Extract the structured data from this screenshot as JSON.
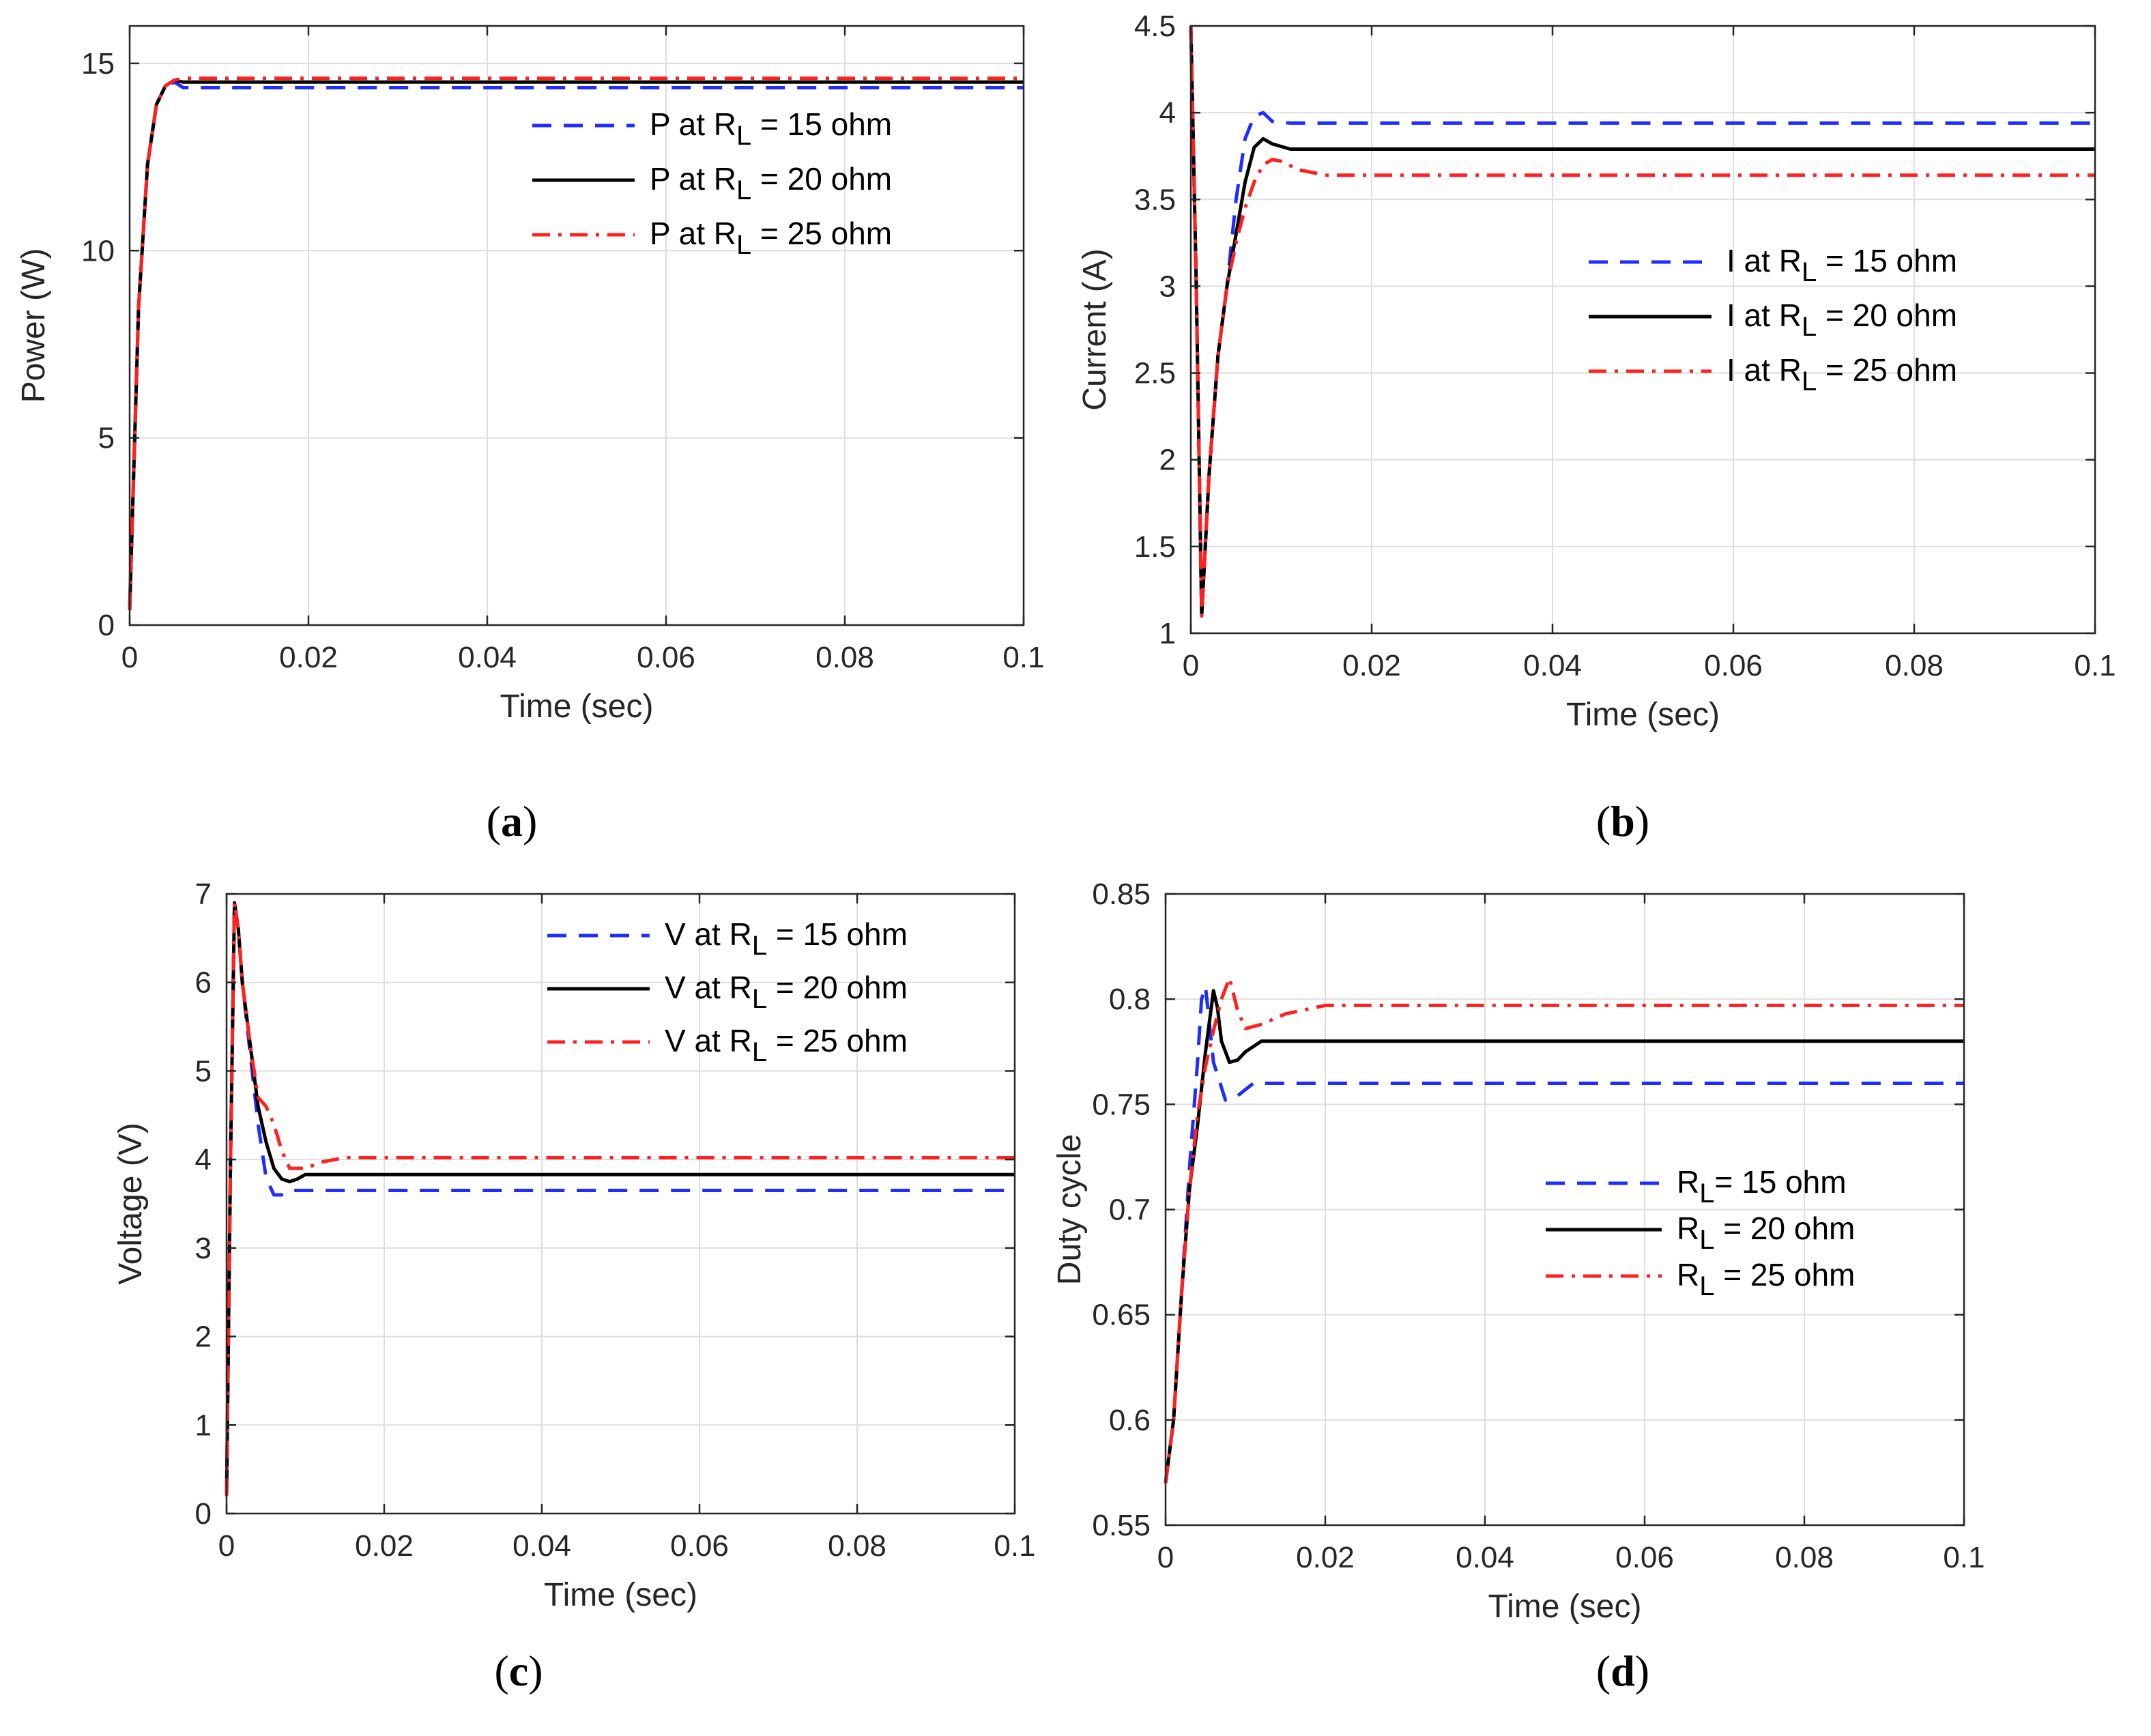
{
  "chart_data": [
    {
      "id": "a",
      "type": "line",
      "caption_letter": "a",
      "xlabel": "Time (sec)",
      "ylabel": "Power (W)",
      "xlim": [
        0,
        0.1
      ],
      "ylim": [
        0,
        16
      ],
      "xticks": [
        0,
        0.02,
        0.04,
        0.06,
        0.08,
        0.1
      ],
      "xtick_labels": [
        "0",
        "0.02",
        "0.04",
        "0.06",
        "0.08",
        "0.1"
      ],
      "yticks": [
        0,
        5,
        10,
        15
      ],
      "ytick_labels": [
        "0",
        "5",
        "10",
        "15"
      ],
      "grid": true,
      "legend_position": "top-right",
      "series": [
        {
          "name": "15",
          "legend_prefix": "P at R",
          "legend_sub": "L",
          "legend_suffix": " = 15 ohm",
          "color": "#1f2dff",
          "style": "dashed",
          "x": [
            0,
            0.0005,
            0.001,
            0.002,
            0.003,
            0.004,
            0.005,
            0.006,
            0.008,
            0.1
          ],
          "y": [
            0.4,
            4.5,
            8.5,
            12.3,
            13.9,
            14.4,
            14.5,
            14.35,
            14.35,
            14.35
          ]
        },
        {
          "name": "20",
          "legend_prefix": "P at R",
          "legend_sub": "L",
          "legend_suffix": " = 20 ohm",
          "color": "#000000",
          "style": "solid",
          "x": [
            0,
            0.0005,
            0.001,
            0.002,
            0.003,
            0.004,
            0.005,
            0.006,
            0.008,
            0.1
          ],
          "y": [
            0.4,
            4.5,
            8.5,
            12.3,
            13.9,
            14.4,
            14.55,
            14.5,
            14.5,
            14.5
          ]
        },
        {
          "name": "25",
          "legend_prefix": "P at R",
          "legend_sub": "L",
          "legend_suffix": " = 25 ohm",
          "color": "#ff2020",
          "style": "dashdot",
          "x": [
            0,
            0.0005,
            0.001,
            0.002,
            0.003,
            0.004,
            0.005,
            0.006,
            0.008,
            0.1
          ],
          "y": [
            0.4,
            4.5,
            8.5,
            12.3,
            13.9,
            14.4,
            14.55,
            14.6,
            14.6,
            14.6
          ]
        }
      ]
    },
    {
      "id": "b",
      "type": "line",
      "caption_letter": "b",
      "xlabel": "Time (sec)",
      "ylabel": "Current (A)",
      "xlim": [
        0,
        0.1
      ],
      "ylim": [
        1,
        4.5
      ],
      "xticks": [
        0,
        0.02,
        0.04,
        0.06,
        0.08,
        0.1
      ],
      "xtick_labels": [
        "0",
        "0.02",
        "0.04",
        "0.06",
        "0.08",
        "0.1"
      ],
      "yticks": [
        1,
        1.5,
        2,
        2.5,
        3,
        3.5,
        4,
        4.5
      ],
      "ytick_labels": [
        "1",
        "1.5",
        "2",
        "2.5",
        "3",
        "3.5",
        "4",
        "4.5"
      ],
      "grid": true,
      "legend_position": "upper-right",
      "series": [
        {
          "name": "15",
          "legend_prefix": "I at R",
          "legend_sub": "L",
          "legend_suffix": " = 15 ohm",
          "color": "#1f2dff",
          "style": "dashed",
          "x": [
            0,
            0.0006,
            0.0012,
            0.002,
            0.003,
            0.004,
            0.005,
            0.006,
            0.007,
            0.008,
            0.009,
            0.011,
            0.1
          ],
          "y": [
            4.5,
            3.0,
            1.1,
            1.9,
            2.6,
            3.0,
            3.5,
            3.85,
            3.98,
            4.0,
            3.95,
            3.94,
            3.94
          ]
        },
        {
          "name": "20",
          "legend_prefix": "I at R",
          "legend_sub": "L",
          "legend_suffix": " = 20 ohm",
          "color": "#000000",
          "style": "solid",
          "x": [
            0,
            0.0006,
            0.0012,
            0.002,
            0.003,
            0.004,
            0.005,
            0.006,
            0.007,
            0.008,
            0.009,
            0.011,
            0.1
          ],
          "y": [
            4.5,
            3.0,
            1.1,
            1.9,
            2.6,
            3.0,
            3.3,
            3.6,
            3.8,
            3.85,
            3.82,
            3.79,
            3.79
          ]
        },
        {
          "name": "25",
          "legend_prefix": "I at R",
          "legend_sub": "L",
          "legend_suffix": " = 25 ohm",
          "color": "#ff2020",
          "style": "dashdot",
          "x": [
            0,
            0.0006,
            0.0012,
            0.002,
            0.003,
            0.004,
            0.005,
            0.006,
            0.007,
            0.008,
            0.009,
            0.01,
            0.012,
            0.015,
            0.1
          ],
          "y": [
            4.5,
            3.0,
            1.1,
            1.9,
            2.6,
            3.0,
            3.25,
            3.45,
            3.6,
            3.7,
            3.73,
            3.72,
            3.67,
            3.64,
            3.64
          ]
        }
      ]
    },
    {
      "id": "c",
      "type": "line",
      "caption_letter": "c",
      "xlabel": "Time (sec)",
      "ylabel": "Voltage (V)",
      "xlim": [
        0,
        0.1
      ],
      "ylim": [
        0,
        7
      ],
      "xticks": [
        0,
        0.02,
        0.04,
        0.06,
        0.08,
        0.1
      ],
      "xtick_labels": [
        "0",
        "0.02",
        "0.04",
        "0.06",
        "0.08",
        "0.1"
      ],
      "yticks": [
        0,
        1,
        2,
        3,
        4,
        5,
        6,
        7
      ],
      "ytick_labels": [
        "0",
        "1",
        "2",
        "3",
        "4",
        "5",
        "6",
        "7"
      ],
      "grid": true,
      "legend_position": "top-right",
      "series": [
        {
          "name": "15",
          "legend_prefix": "V at R",
          "legend_sub": "L",
          "legend_suffix": " = 15 ohm",
          "color": "#1f2dff",
          "style": "dashed",
          "x": [
            0,
            0.0005,
            0.001,
            0.0015,
            0.002,
            0.003,
            0.004,
            0.005,
            0.006,
            0.007,
            0.008,
            0.009,
            0.1
          ],
          "y": [
            0.2,
            4.0,
            6.9,
            6.6,
            6.0,
            5.2,
            4.4,
            3.8,
            3.6,
            3.6,
            3.65,
            3.65,
            3.65
          ]
        },
        {
          "name": "20",
          "legend_prefix": "V at R",
          "legend_sub": "L",
          "legend_suffix": " = 20 ohm",
          "color": "#000000",
          "style": "solid",
          "x": [
            0,
            0.0005,
            0.001,
            0.0015,
            0.002,
            0.003,
            0.004,
            0.005,
            0.006,
            0.007,
            0.008,
            0.009,
            0.01,
            0.1
          ],
          "y": [
            0.2,
            4.0,
            6.9,
            6.6,
            6.0,
            5.3,
            4.6,
            4.2,
            3.9,
            3.78,
            3.75,
            3.78,
            3.83,
            3.83
          ]
        },
        {
          "name": "25",
          "legend_prefix": "V at R",
          "legend_sub": "L",
          "legend_suffix": " = 25 ohm",
          "color": "#ff2020",
          "style": "dashdot",
          "x": [
            0,
            0.0005,
            0.001,
            0.0015,
            0.002,
            0.003,
            0.004,
            0.005,
            0.006,
            0.007,
            0.008,
            0.01,
            0.012,
            0.015,
            0.1
          ],
          "y": [
            0.2,
            4.0,
            6.9,
            6.6,
            6.0,
            5.3,
            4.7,
            4.6,
            4.4,
            4.1,
            3.9,
            3.9,
            3.97,
            4.02,
            4.02
          ]
        }
      ]
    },
    {
      "id": "d",
      "type": "line",
      "caption_letter": "d",
      "xlabel": "Time (sec)",
      "ylabel": "Duty cycle",
      "xlim": [
        0,
        0.1
      ],
      "ylim": [
        0.55,
        0.85
      ],
      "xticks": [
        0,
        0.02,
        0.04,
        0.06,
        0.08,
        0.1
      ],
      "xtick_labels": [
        "0",
        "0.02",
        "0.04",
        "0.06",
        "0.08",
        "0.1"
      ],
      "yticks": [
        0.55,
        0.6,
        0.65,
        0.7,
        0.75,
        0.8,
        0.85
      ],
      "ytick_labels": [
        "0.55",
        "0.6",
        "0.65",
        "0.7",
        "0.75",
        "0.8",
        "0.85"
      ],
      "grid": true,
      "legend_position": "center-right",
      "series": [
        {
          "name": "15",
          "legend_prefix": "R",
          "legend_sub": "L",
          "legend_suffix": "= 15 ohm",
          "color": "#1f2dff",
          "style": "dashed",
          "x": [
            0,
            0.001,
            0.002,
            0.003,
            0.004,
            0.0045,
            0.005,
            0.006,
            0.0075,
            0.009,
            0.011,
            0.1
          ],
          "y": [
            0.57,
            0.6,
            0.66,
            0.72,
            0.77,
            0.8,
            0.806,
            0.77,
            0.752,
            0.754,
            0.76,
            0.76
          ]
        },
        {
          "name": "20",
          "legend_prefix": "R",
          "legend_sub": "L",
          "legend_suffix": " = 20 ohm",
          "color": "#000000",
          "style": "solid",
          "x": [
            0,
            0.001,
            0.002,
            0.003,
            0.004,
            0.005,
            0.006,
            0.0065,
            0.007,
            0.008,
            0.009,
            0.01,
            0.012,
            0.1
          ],
          "y": [
            0.57,
            0.6,
            0.66,
            0.71,
            0.74,
            0.775,
            0.804,
            0.796,
            0.78,
            0.77,
            0.771,
            0.775,
            0.78,
            0.78
          ]
        },
        {
          "name": "25",
          "legend_prefix": "R",
          "legend_sub": "L",
          "legend_suffix": " = 25 ohm",
          "color": "#ff2020",
          "style": "dashdot",
          "x": [
            0,
            0.001,
            0.002,
            0.003,
            0.004,
            0.005,
            0.006,
            0.007,
            0.008,
            0.009,
            0.01,
            0.012,
            0.015,
            0.02,
            0.1
          ],
          "y": [
            0.57,
            0.6,
            0.66,
            0.71,
            0.745,
            0.768,
            0.785,
            0.8,
            0.81,
            0.795,
            0.786,
            0.788,
            0.793,
            0.797,
            0.797
          ]
        }
      ]
    }
  ]
}
